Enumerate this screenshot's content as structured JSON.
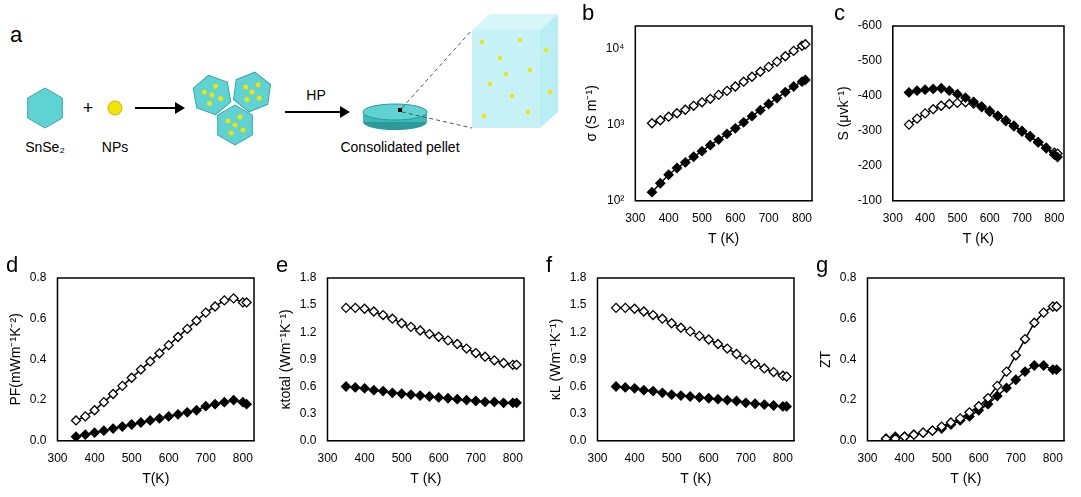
{
  "diagram": {
    "panel_label": "a",
    "components": [
      "SnSe₂",
      "NPs"
    ],
    "operator": "+",
    "process": "HP",
    "product": "Consolidated pellet"
  },
  "chart_data": [
    {
      "panel_label": "b",
      "type": "line",
      "x_label": "T (K)",
      "y_label": "σ (S m⁻¹)",
      "x": [
        350,
        375,
        400,
        425,
        450,
        475,
        500,
        525,
        550,
        575,
        600,
        625,
        650,
        675,
        700,
        725,
        750,
        775,
        800,
        810
      ],
      "series": [
        {
          "color": "#000000",
          "marker": "open",
          "values": [
            1050,
            1150,
            1280,
            1420,
            1580,
            1780,
            1980,
            2200,
            2480,
            2800,
            3200,
            3700,
            4300,
            5000,
            5800,
            6800,
            8000,
            9400,
            11000,
            11500
          ]
        },
        {
          "color": "#000000",
          "marker": "filled",
          "values": [
            130,
            170,
            220,
            270,
            320,
            380,
            450,
            540,
            640,
            760,
            900,
            1080,
            1300,
            1560,
            1880,
            2250,
            2700,
            3200,
            3700,
            3900
          ]
        }
      ],
      "xlim": [
        300,
        830
      ],
      "xticks": [
        300,
        400,
        500,
        600,
        700,
        800
      ],
      "ylim": [
        100,
        20000
      ],
      "yticks": [
        {
          "value": 100,
          "label": "10²"
        },
        {
          "value": 1000,
          "label": "10³"
        },
        {
          "value": 10000,
          "label": "10⁴"
        }
      ],
      "log": "y",
      "grid": false
    },
    {
      "panel_label": "c",
      "type": "line",
      "x_label": "T (K)",
      "y_label": "S (μvk⁻¹)",
      "x": [
        350,
        375,
        400,
        425,
        450,
        475,
        500,
        525,
        550,
        575,
        600,
        625,
        650,
        675,
        700,
        725,
        750,
        775,
        800,
        810
      ],
      "series": [
        {
          "color": "#000000",
          "marker": "filled",
          "values": [
            -410,
            -415,
            -418,
            -420,
            -422,
            -415,
            -405,
            -395,
            -383,
            -370,
            -357,
            -343,
            -330,
            -315,
            -300,
            -285,
            -268,
            -250,
            -232,
            -225
          ]
        },
        {
          "color": "#000000",
          "marker": "open",
          "values": [
            -318,
            -335,
            -350,
            -362,
            -372,
            -377,
            -380,
            -382,
            -378,
            -368,
            -355,
            -342,
            -328,
            -313,
            -298,
            -283,
            -267,
            -252,
            -238,
            -235
          ]
        }
      ],
      "xlim": [
        300,
        830
      ],
      "xticks": [
        300,
        400,
        500,
        600,
        700,
        800
      ],
      "ylim": [
        -100,
        -600
      ],
      "yticks": [
        -600,
        -500,
        -400,
        -300,
        -200,
        -100
      ],
      "grid": false
    },
    {
      "panel_label": "d",
      "type": "line",
      "x_label": "T(K)",
      "y_label": "PF(mWm⁻¹K⁻²)",
      "x": [
        350,
        375,
        400,
        425,
        450,
        475,
        500,
        525,
        550,
        575,
        600,
        625,
        650,
        675,
        700,
        725,
        750,
        775,
        800,
        810
      ],
      "series": [
        {
          "color": "#000000",
          "marker": "open",
          "values": [
            0.1,
            0.12,
            0.15,
            0.19,
            0.23,
            0.27,
            0.31,
            0.35,
            0.39,
            0.43,
            0.47,
            0.51,
            0.55,
            0.59,
            0.63,
            0.66,
            0.69,
            0.7,
            0.68,
            0.68
          ]
        },
        {
          "color": "#000000",
          "marker": "filled",
          "values": [
            0.02,
            0.03,
            0.04,
            0.05,
            0.06,
            0.07,
            0.08,
            0.09,
            0.1,
            0.11,
            0.12,
            0.13,
            0.14,
            0.15,
            0.17,
            0.18,
            0.19,
            0.2,
            0.19,
            0.18
          ]
        }
      ],
      "xlim": [
        300,
        830
      ],
      "xticks": [
        300,
        400,
        500,
        600,
        700,
        800
      ],
      "ylim": [
        0,
        0.8
      ],
      "yticks": [
        {
          "value": 0,
          "label": "0.0"
        },
        0.2,
        0.4,
        0.6,
        0.8
      ],
      "grid": false
    },
    {
      "panel_label": "e",
      "type": "line",
      "x_label": "T (K)",
      "y_label": "κtotal (Wm⁻¹K⁻¹)",
      "x": [
        350,
        375,
        400,
        425,
        450,
        475,
        500,
        525,
        550,
        575,
        600,
        625,
        650,
        675,
        700,
        725,
        750,
        775,
        800,
        810
      ],
      "series": [
        {
          "color": "#000000",
          "marker": "open",
          "values": [
            1.47,
            1.47,
            1.46,
            1.43,
            1.39,
            1.35,
            1.3,
            1.26,
            1.22,
            1.18,
            1.15,
            1.11,
            1.07,
            1.02,
            0.97,
            0.93,
            0.89,
            0.86,
            0.84,
            0.84
          ]
        },
        {
          "color": "#000000",
          "marker": "filled",
          "values": [
            0.6,
            0.59,
            0.58,
            0.56,
            0.55,
            0.53,
            0.52,
            0.51,
            0.5,
            0.49,
            0.48,
            0.47,
            0.46,
            0.45,
            0.44,
            0.43,
            0.43,
            0.42,
            0.42,
            0.42
          ]
        }
      ],
      "xlim": [
        300,
        830
      ],
      "xticks": [
        300,
        400,
        500,
        600,
        700,
        800
      ],
      "ylim": [
        0,
        1.8
      ],
      "yticks": [
        {
          "value": 0,
          "label": "0.0"
        },
        0.3,
        0.6,
        0.9,
        1.2,
        1.5,
        1.8
      ],
      "grid": false
    },
    {
      "panel_label": "f",
      "type": "line",
      "x_label": "T (K)",
      "y_label": "κL (Wm⁻¹K⁻¹)",
      "x": [
        350,
        375,
        400,
        425,
        450,
        475,
        500,
        525,
        550,
        575,
        600,
        625,
        650,
        675,
        700,
        725,
        750,
        775,
        800,
        810
      ],
      "series": [
        {
          "color": "#000000",
          "marker": "open",
          "values": [
            1.47,
            1.47,
            1.46,
            1.43,
            1.39,
            1.35,
            1.3,
            1.25,
            1.21,
            1.16,
            1.12,
            1.07,
            1.02,
            0.96,
            0.9,
            0.85,
            0.8,
            0.76,
            0.72,
            0.71
          ]
        },
        {
          "color": "#000000",
          "marker": "filled",
          "values": [
            0.6,
            0.59,
            0.58,
            0.56,
            0.55,
            0.53,
            0.51,
            0.5,
            0.49,
            0.48,
            0.47,
            0.46,
            0.45,
            0.44,
            0.42,
            0.41,
            0.4,
            0.39,
            0.38,
            0.38
          ]
        }
      ],
      "xlim": [
        300,
        830
      ],
      "xticks": [
        300,
        400,
        500,
        600,
        700,
        800
      ],
      "ylim": [
        0,
        1.8
      ],
      "yticks": [
        {
          "value": 0,
          "label": "0.0"
        },
        0.3,
        0.6,
        0.9,
        1.2,
        1.5,
        1.8
      ],
      "grid": false
    },
    {
      "panel_label": "g",
      "type": "line",
      "x_label": "T (K)",
      "y_label": "ZT",
      "x": [
        350,
        375,
        400,
        425,
        450,
        475,
        500,
        525,
        550,
        575,
        600,
        625,
        650,
        675,
        700,
        725,
        750,
        775,
        800,
        810
      ],
      "series": [
        {
          "color": "#000000",
          "marker": "open",
          "values": [
            0.01,
            0.01,
            0.02,
            0.03,
            0.04,
            0.05,
            0.07,
            0.09,
            0.11,
            0.14,
            0.17,
            0.21,
            0.27,
            0.34,
            0.42,
            0.5,
            0.58,
            0.63,
            0.66,
            0.66
          ]
        },
        {
          "color": "#000000",
          "marker": "filled",
          "values": [
            0.01,
            0.02,
            0.02,
            0.03,
            0.04,
            0.05,
            0.06,
            0.08,
            0.1,
            0.12,
            0.15,
            0.18,
            0.22,
            0.26,
            0.3,
            0.34,
            0.37,
            0.37,
            0.35,
            0.35
          ]
        }
      ],
      "xlim": [
        300,
        830
      ],
      "xticks": [
        300,
        400,
        500,
        600,
        700,
        800
      ],
      "ylim": [
        0,
        0.8
      ],
      "yticks": [
        {
          "value": 0,
          "label": "0.0"
        },
        0.2,
        0.4,
        0.6,
        0.8
      ],
      "grid": false
    }
  ]
}
